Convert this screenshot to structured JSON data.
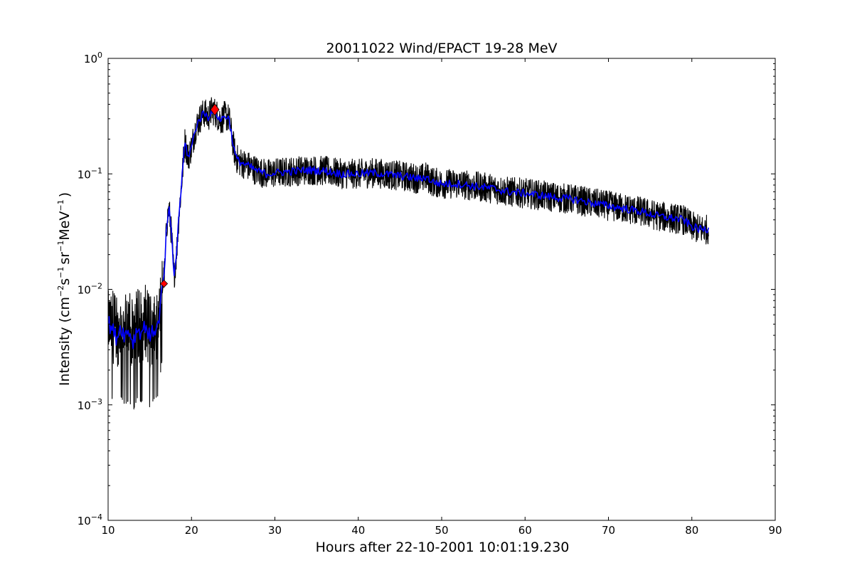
{
  "chart_data": {
    "type": "line",
    "title": "20011022 Wind/EPACT 19-28 MeV",
    "xlabel": "Hours after 22-10-2001 10:01:19.230",
    "ylabel": {
      "prefix": "Intensity (cm",
      "exp1": "−2",
      "s": "s",
      "exp2": "−1",
      "sr": "sr",
      "exp3": "−1",
      "mev": "MeV",
      "exp4": "−1",
      "suffix": ")"
    },
    "xlim": [
      10,
      90
    ],
    "ylim": [
      0.0001,
      1
    ],
    "yscale": "log",
    "grid": false,
    "legend": "none",
    "x_ticks": [
      {
        "value": 10,
        "label": "10"
      },
      {
        "value": 20,
        "label": "20"
      },
      {
        "value": 30,
        "label": "30"
      },
      {
        "value": 40,
        "label": "40"
      },
      {
        "value": 50,
        "label": "50"
      },
      {
        "value": 60,
        "label": "60"
      },
      {
        "value": 70,
        "label": "70"
      },
      {
        "value": 80,
        "label": "80"
      },
      {
        "value": 90,
        "label": "90"
      }
    ],
    "y_ticks": [
      {
        "value": 0.0001,
        "base": "10",
        "exp": "−4"
      },
      {
        "value": 0.001,
        "base": "10",
        "exp": "−3"
      },
      {
        "value": 0.01,
        "base": "10",
        "exp": "−2"
      },
      {
        "value": 0.1,
        "base": "10",
        "exp": "−1"
      },
      {
        "value": 1,
        "base": "10",
        "exp": "0"
      }
    ],
    "series": [
      {
        "color": "#000000",
        "x": [
          10.0,
          10.5,
          11.0,
          11.5,
          12.0,
          12.5,
          13.0,
          13.5,
          14.0,
          14.5,
          15.0,
          15.5,
          16.0,
          16.4,
          16.8,
          17.0,
          17.3,
          17.6,
          17.9,
          18.2,
          18.5,
          18.8,
          19.2,
          19.6,
          20.0,
          20.5,
          21.0,
          21.5,
          22.0,
          22.5,
          23.0,
          23.5,
          24.0,
          24.5,
          25.0,
          25.3,
          25.6,
          26.0,
          27.0,
          28.0,
          29.0,
          30.0,
          32.0,
          34.0,
          36.0,
          38.0,
          40.0,
          42.0,
          44.0,
          46.0,
          47.5,
          48.0,
          49.0,
          50.0,
          52.0,
          54.0,
          56.0,
          58.0,
          60.0,
          62.0,
          64.0,
          66.0,
          68.0,
          70.0,
          72.0,
          74.0,
          76.0,
          78.0,
          79.0,
          80.0,
          81.0,
          82.0
        ],
        "values": [
          0.0052,
          0.0045,
          0.0038,
          0.0048,
          0.004,
          0.0044,
          0.0035,
          0.0046,
          0.0042,
          0.005,
          0.0038,
          0.0045,
          0.0048,
          0.009,
          0.015,
          0.035,
          0.05,
          0.03,
          0.013,
          0.02,
          0.045,
          0.08,
          0.19,
          0.14,
          0.17,
          0.25,
          0.3,
          0.34,
          0.31,
          0.36,
          0.33,
          0.29,
          0.32,
          0.3,
          0.18,
          0.14,
          0.13,
          0.125,
          0.115,
          0.105,
          0.1,
          0.102,
          0.105,
          0.108,
          0.106,
          0.1,
          0.1,
          0.102,
          0.098,
          0.094,
          0.09,
          0.095,
          0.085,
          0.082,
          0.082,
          0.078,
          0.075,
          0.07,
          0.068,
          0.065,
          0.062,
          0.06,
          0.056,
          0.053,
          0.05,
          0.047,
          0.043,
          0.041,
          0.04,
          0.035,
          0.033,
          0.033
        ],
        "noise": 0.13
      },
      {
        "color": "#0000ff",
        "x": [
          10.0,
          10.5,
          11.0,
          11.5,
          12.0,
          12.5,
          13.0,
          13.5,
          14.0,
          14.5,
          15.0,
          15.5,
          16.0,
          16.4,
          16.8,
          17.0,
          17.3,
          17.6,
          17.9,
          18.2,
          18.5,
          18.8,
          19.2,
          19.6,
          20.0,
          20.5,
          21.0,
          21.5,
          22.0,
          22.5,
          23.0,
          23.5,
          24.0,
          24.5,
          25.0,
          25.3,
          25.6,
          26.0,
          27.0,
          28.0,
          29.0,
          30.0,
          32.0,
          34.0,
          36.0,
          38.0,
          40.0,
          42.0,
          44.0,
          46.0,
          47.5,
          48.0,
          49.0,
          50.0,
          52.0,
          54.0,
          56.0,
          58.0,
          60.0,
          62.0,
          64.0,
          66.0,
          68.0,
          70.0,
          72.0,
          74.0,
          76.0,
          78.0,
          79.0,
          80.0,
          81.0,
          82.0
        ],
        "values": [
          0.0052,
          0.0045,
          0.0038,
          0.0048,
          0.004,
          0.0044,
          0.0035,
          0.0046,
          0.0042,
          0.005,
          0.0038,
          0.0045,
          0.0048,
          0.009,
          0.015,
          0.035,
          0.05,
          0.03,
          0.013,
          0.02,
          0.045,
          0.08,
          0.19,
          0.14,
          0.17,
          0.25,
          0.3,
          0.34,
          0.31,
          0.36,
          0.33,
          0.29,
          0.32,
          0.3,
          0.18,
          0.14,
          0.13,
          0.125,
          0.115,
          0.105,
          0.1,
          0.102,
          0.105,
          0.108,
          0.106,
          0.1,
          0.1,
          0.102,
          0.098,
          0.094,
          0.09,
          0.095,
          0.085,
          0.082,
          0.082,
          0.078,
          0.075,
          0.07,
          0.068,
          0.065,
          0.062,
          0.06,
          0.056,
          0.053,
          0.05,
          0.047,
          0.043,
          0.041,
          0.04,
          0.035,
          0.033,
          0.033
        ],
        "noise": 0.035
      }
    ],
    "markers": [
      {
        "name": "onset-marker",
        "x": 16.7,
        "y": 0.0112,
        "shape": "diamond",
        "color": "#ff0000"
      },
      {
        "name": "peak-marker",
        "x": 22.8,
        "y": 0.36,
        "shape": "diamond",
        "color": "#ff0000"
      }
    ]
  }
}
